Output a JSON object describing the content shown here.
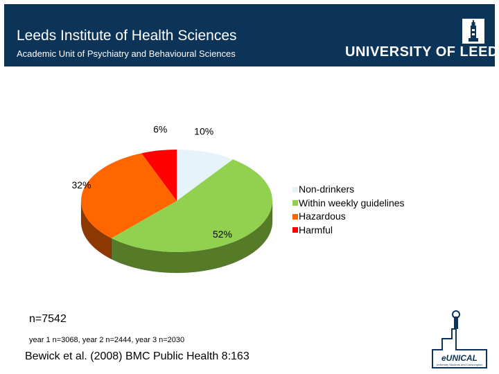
{
  "header": {
    "title": "Leeds Institute of Health Sciences",
    "subtitle": "Academic Unit of Psychiatry and Behavioural Sciences",
    "university": "UNIVERSITY OF LEEDS",
    "background_color": "#0c3358"
  },
  "chart_data": {
    "type": "pie",
    "three_d": true,
    "categories": [
      "Non-drinkers",
      "Within weekly guidelines",
      "Hazardous",
      "Harmful"
    ],
    "values": [
      10,
      52,
      32,
      6
    ],
    "data_labels": [
      "10%",
      "52%",
      "32%",
      "6%"
    ],
    "colors": [
      "#e6f3f9",
      "#92d050",
      "#ff6600",
      "#ff0000"
    ],
    "side_colors": [
      "#b9c9d0",
      "#557a28",
      "#8c3800",
      "#8c0000"
    ],
    "legend": {
      "entries": [
        "Non-drinkers",
        "Within weekly guidelines",
        "Hazardous",
        "Harmful"
      ],
      "placement": "right"
    },
    "title": "",
    "start_angle_deg": 0,
    "direction": "clockwise"
  },
  "notes": {
    "n_total": "n=7542",
    "n_years": "year 1 n=3068, year 2 n=2444, year 3 n=2030",
    "citation": "Bewick et al. (2008) BMC Public Health 8:163"
  },
  "logo": {
    "text": "eUNICAL",
    "tagline": "University Students and Consumption",
    "color": "#0c3358"
  }
}
